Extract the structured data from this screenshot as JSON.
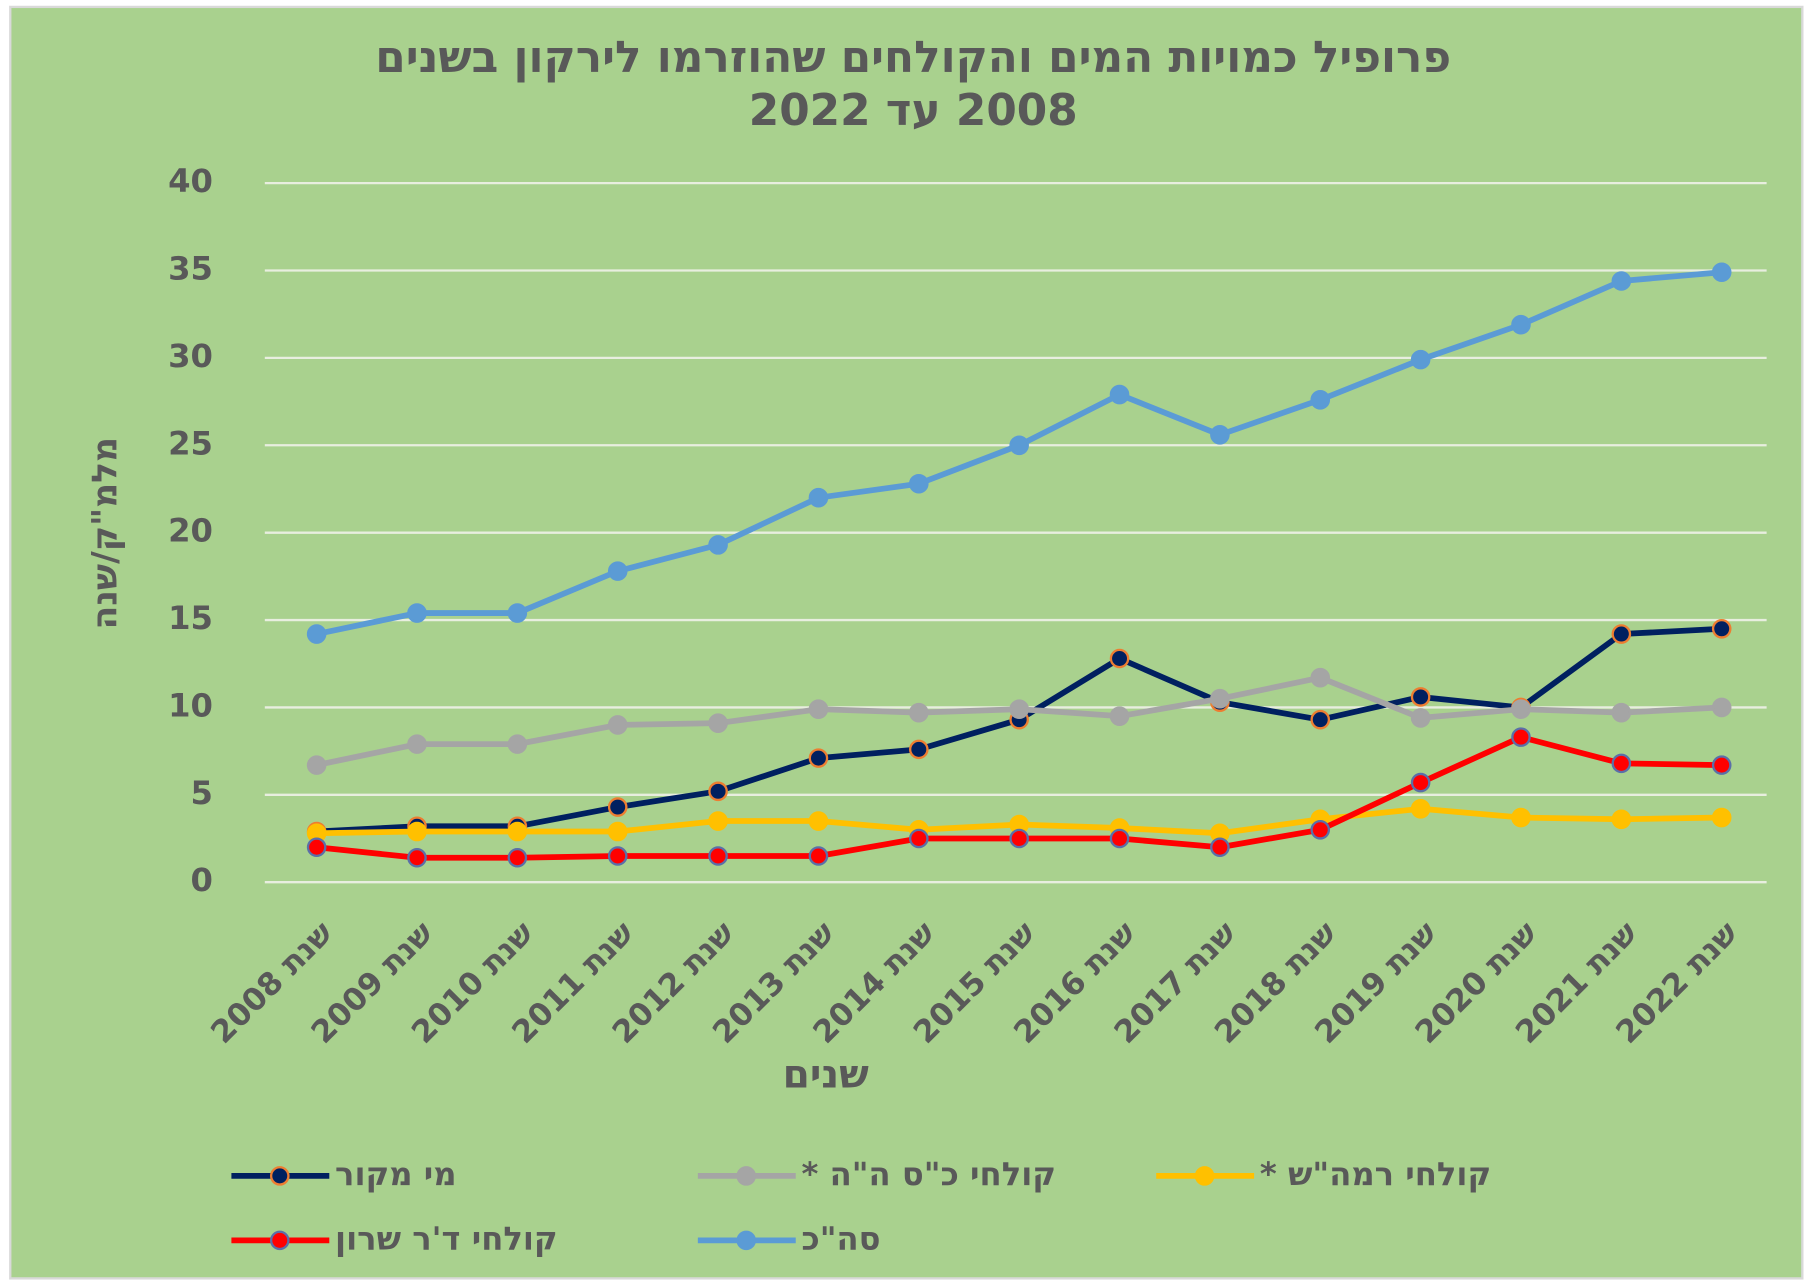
{
  "chart_data": {
    "type": "line",
    "title": [
      "פרופיל כמויות המים והקולחים שהוזרמו לירקון בשנים",
      "2008 עד 2022"
    ],
    "x_label": "שנים",
    "y_label": "מלמ\"ק/שנה",
    "categories": [
      "שנת 2008",
      "שנת 2009",
      "שנת 2010",
      "שנת 2011",
      "שנת 2012",
      "שנת 2013",
      "שנת 2014",
      "שנת 2015",
      "שנת 2016",
      "שנת 2017",
      "שנת 2018",
      "שנת 2019",
      "שנת 2020",
      "שנת 2021",
      "שנת 2022"
    ],
    "ylim": [
      0,
      40
    ],
    "yticks": [
      0,
      5,
      10,
      15,
      20,
      25,
      30,
      35,
      40
    ],
    "grid": true,
    "background": "#a9d18e",
    "legend": "bottom",
    "series": [
      {
        "name": "מי מקור",
        "color": "#002060",
        "marker_edge": "#ed7d31",
        "values": [
          2.9,
          3.2,
          3.2,
          4.3,
          5.2,
          7.1,
          7.6,
          9.3,
          12.8,
          10.3,
          9.3,
          10.6,
          10.0,
          14.2,
          14.5
        ]
      },
      {
        "name": "קולחי כ\"ס ה\"ה *",
        "color": "#a5a5a5",
        "marker_edge": "#a5a5a5",
        "values": [
          6.7,
          7.9,
          7.9,
          9.0,
          9.1,
          9.9,
          9.7,
          9.9,
          9.5,
          10.5,
          11.7,
          9.4,
          9.9,
          9.7,
          10.0
        ]
      },
      {
        "name": "קולחי רמה\"ש *",
        "color": "#ffc000",
        "marker_edge": "#ffc000",
        "values": [
          2.8,
          2.9,
          2.9,
          2.9,
          3.5,
          3.5,
          3.0,
          3.3,
          3.1,
          2.8,
          3.6,
          4.2,
          3.7,
          3.6,
          3.7
        ]
      },
      {
        "name": "קולחי ד'ר שרון",
        "color": "#ff0000",
        "marker_edge": "#5b6fa8",
        "values": [
          2.0,
          1.4,
          1.4,
          1.5,
          1.5,
          1.5,
          2.5,
          2.5,
          2.5,
          2.0,
          3.0,
          5.7,
          8.3,
          6.8,
          6.7
        ]
      },
      {
        "name": "סה\"כ",
        "color": "#5b9bd5",
        "marker_edge": "#5b9bd5",
        "values": [
          14.2,
          15.4,
          15.4,
          17.8,
          19.3,
          22.0,
          22.8,
          25.0,
          27.9,
          25.6,
          27.6,
          29.9,
          31.9,
          34.4,
          34.9
        ]
      }
    ]
  }
}
